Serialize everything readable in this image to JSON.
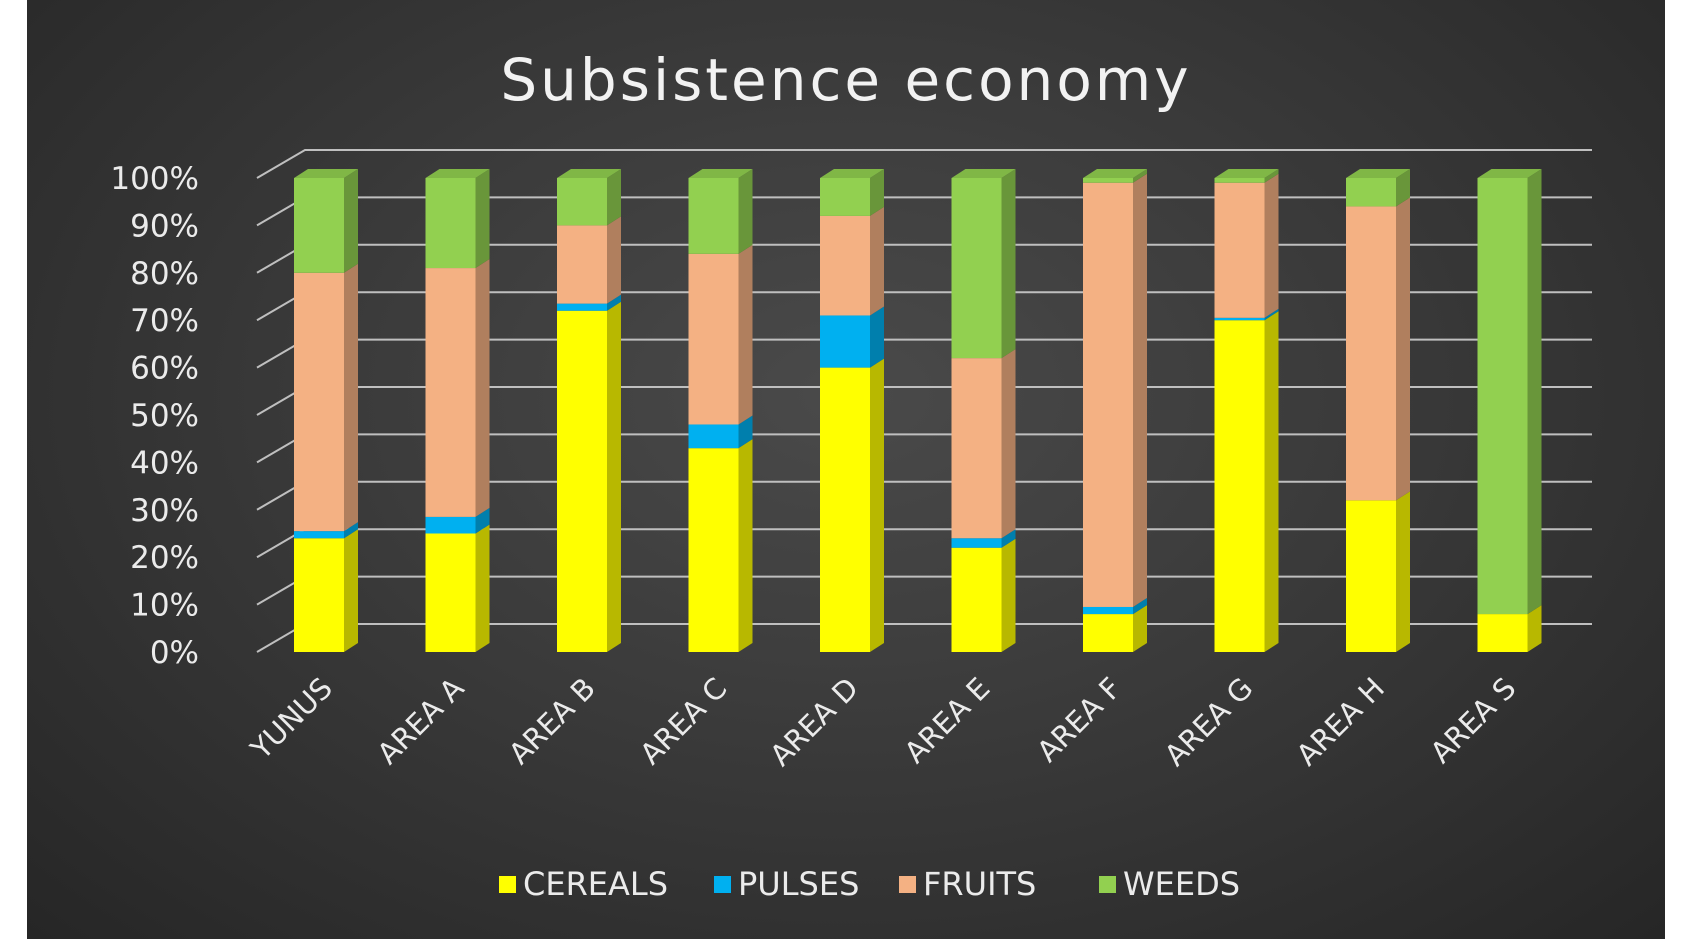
{
  "chart_data": {
    "type": "bar",
    "stacked": true,
    "percent_stacked": true,
    "three_d": true,
    "title": "Subsistence economy",
    "categories": [
      "YUNUS",
      "AREA A",
      "AREA B",
      "AREA C",
      "AREA D",
      "AREA E",
      "AREA F",
      "AREA G",
      "AREA H",
      "AREA S"
    ],
    "series": [
      {
        "name": "CEREALS",
        "color": "#ffff00",
        "values": [
          24,
          25,
          72,
          43,
          60,
          22,
          8,
          70,
          32,
          8
        ]
      },
      {
        "name": "PULSES",
        "color": "#00b0f0",
        "values": [
          1.5,
          3.5,
          1.5,
          5,
          11,
          2,
          1.5,
          0.5,
          0,
          0
        ]
      },
      {
        "name": "FRUITS",
        "color": "#f4b183",
        "values": [
          54.5,
          52.5,
          16.5,
          36,
          21,
          38,
          89.5,
          28.5,
          62,
          0
        ]
      },
      {
        "name": "WEEDS",
        "color": "#92d050",
        "values": [
          20,
          19,
          10,
          16,
          8,
          38,
          1,
          1,
          6,
          92
        ]
      }
    ],
    "yticks": [
      "0%",
      "10%",
      "20%",
      "30%",
      "40%",
      "50%",
      "60%",
      "70%",
      "80%",
      "90%",
      "100%"
    ],
    "ylim": [
      0,
      100
    ],
    "grid": true,
    "legend": "bottom",
    "gridline_color": "#bfbfbf"
  }
}
